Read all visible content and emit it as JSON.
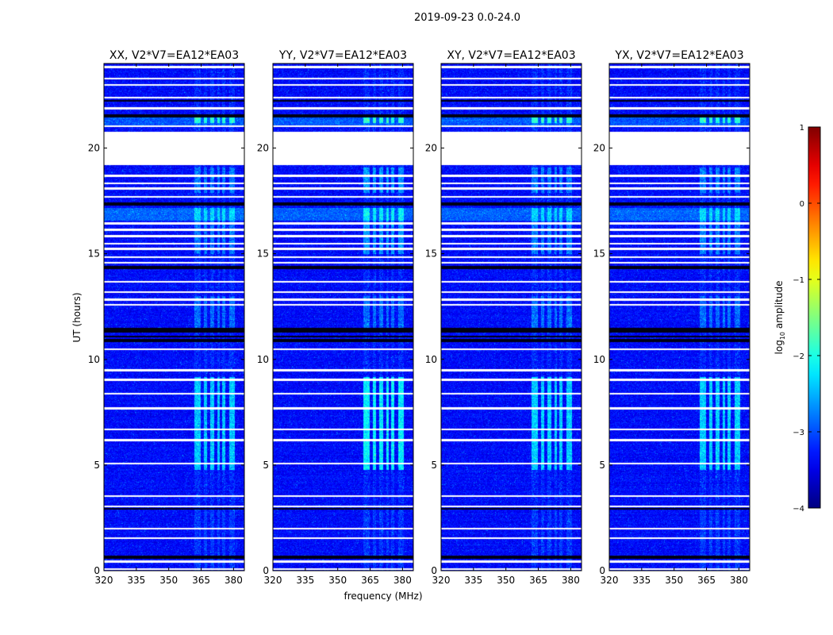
{
  "chart_data": {
    "type": "heatmap",
    "suptitle": "2019-09-23 0.0-24.0",
    "xlabel": "frequency (MHz)",
    "ylabel": "UT (hours)",
    "xlim": [
      320,
      385
    ],
    "ylim": [
      0,
      24
    ],
    "xticks": [
      320,
      335,
      350,
      365,
      380
    ],
    "yticks": [
      0,
      5,
      10,
      15,
      20
    ],
    "panels": [
      {
        "title": "XX, V2*V7=EA12*EA03",
        "rfi_level": 0.55
      },
      {
        "title": "YY, V2*V7=EA12*EA03",
        "rfi_level": 0.85
      },
      {
        "title": "XY, V2*V7=EA12*EA03",
        "rfi_level": 0.6
      },
      {
        "title": "YX, V2*V7=EA12*EA03",
        "rfi_level": 0.6
      }
    ],
    "colorbar": {
      "label": "log10 amplitude",
      "label_main": "log",
      "label_sub": "10",
      "label_tail": " amplitude",
      "range": [
        -4,
        1
      ],
      "ticks": [
        1,
        0,
        -1,
        -2,
        -3,
        -4
      ],
      "colormap": "jet"
    },
    "flagged_hours": [
      [
        19.2,
        20.8
      ]
    ],
    "rfi_bands_mhz": [
      [
        361.5,
        364.5
      ],
      [
        366.0,
        367.5
      ],
      [
        369.0,
        371.0
      ],
      [
        372.5,
        373.5
      ],
      [
        374.5,
        376.0
      ],
      [
        378.0,
        380.5
      ]
    ]
  }
}
